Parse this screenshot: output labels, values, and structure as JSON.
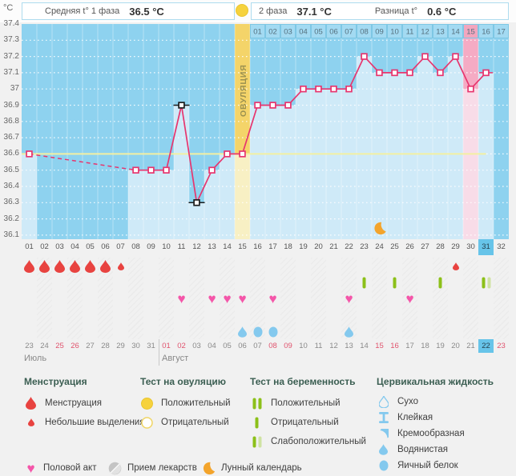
{
  "header": {
    "unit": "°C",
    "phase1_label": "Средняя t° 1 фаза",
    "phase1_value": "36.5 °C",
    "phase2_label": "2 фаза",
    "phase2_value": "37.1 °C",
    "diff_label": "Разница t°",
    "diff_value": "0.6 °C"
  },
  "chart_data": {
    "type": "line",
    "ylabel": "°C",
    "ylim": [
      36.1,
      37.4
    ],
    "ytick_step": 0.1,
    "ytick_labels": [
      "37.4",
      "37.3",
      "37.2",
      "37.1",
      "37",
      "36.9",
      "36.8",
      "36.7",
      "36.6",
      "36.5",
      "36.4",
      "36.3",
      "36.2",
      "36.1"
    ],
    "x_range_days": [
      1,
      32
    ],
    "points": [
      {
        "day": 1,
        "temp": 36.6
      },
      {
        "day": 8,
        "temp": 36.5
      },
      {
        "day": 9,
        "temp": 36.5
      },
      {
        "day": 10,
        "temp": 36.5
      },
      {
        "day": 11,
        "temp": 36.9,
        "disturbed": true
      },
      {
        "day": 12,
        "temp": 36.3,
        "disturbed": true
      },
      {
        "day": 13,
        "temp": 36.5
      },
      {
        "day": 14,
        "temp": 36.6
      },
      {
        "day": 15,
        "temp": 36.6
      },
      {
        "day": 16,
        "temp": 36.9
      },
      {
        "day": 17,
        "temp": 36.9
      },
      {
        "day": 18,
        "temp": 36.9
      },
      {
        "day": 19,
        "temp": 37.0
      },
      {
        "day": 20,
        "temp": 37.0
      },
      {
        "day": 21,
        "temp": 37.0
      },
      {
        "day": 22,
        "temp": 37.0
      },
      {
        "day": 23,
        "temp": 37.2
      },
      {
        "day": 24,
        "temp": 37.1
      },
      {
        "day": 25,
        "temp": 37.1
      },
      {
        "day": 26,
        "temp": 37.1
      },
      {
        "day": 27,
        "temp": 37.2
      },
      {
        "day": 28,
        "temp": 37.1
      },
      {
        "day": 29,
        "temp": 37.2
      },
      {
        "day": 30,
        "temp": 37.0
      },
      {
        "day": 31,
        "temp": 37.1,
        "end_marker": true
      }
    ],
    "coverline": 36.6,
    "ovulation_day": 15,
    "ovulation_label": "ОВУЛЯЦИЯ",
    "expected_period_day": 30,
    "today_day": 31,
    "moon_day": 24,
    "dpo_band": {
      "start_day": 16,
      "labels": [
        "01",
        "02",
        "03",
        "04",
        "05",
        "06",
        "07",
        "08",
        "09",
        "10",
        "11",
        "12",
        "13",
        "14",
        "15",
        "16",
        "17"
      ]
    }
  },
  "events": {
    "menstruation_days": [
      1,
      2,
      3,
      4,
      5,
      6
    ],
    "spotting_days": [
      7,
      29
    ],
    "pregnancy_tests": [
      {
        "day": 23,
        "result": "negative"
      },
      {
        "day": 25,
        "result": "negative"
      },
      {
        "day": 28,
        "result": "negative"
      },
      {
        "day": 31,
        "result": "weak_positive"
      }
    ],
    "intercourse_days": [
      11,
      13,
      14,
      15,
      17,
      22,
      26
    ],
    "cervical_fluid": [
      {
        "day": 15,
        "type": "watery"
      },
      {
        "day": 16,
        "type": "eggwhite"
      },
      {
        "day": 17,
        "type": "eggwhite"
      },
      {
        "day": 22,
        "type": "watery"
      }
    ]
  },
  "calendar": {
    "day_numbers": [
      "01",
      "02",
      "03",
      "04",
      "05",
      "06",
      "07",
      "08",
      "09",
      "10",
      "11",
      "12",
      "13",
      "14",
      "15",
      "16",
      "17",
      "18",
      "19",
      "20",
      "21",
      "22",
      "23",
      "24",
      "25",
      "26",
      "27",
      "28",
      "29",
      "30",
      "31",
      "32"
    ],
    "dates": [
      {
        "label": "23"
      },
      {
        "label": "24"
      },
      {
        "label": "25",
        "weekend": true
      },
      {
        "label": "26",
        "weekend": true
      },
      {
        "label": "27"
      },
      {
        "label": "28"
      },
      {
        "label": "29"
      },
      {
        "label": "30"
      },
      {
        "label": "31"
      },
      {
        "label": "01",
        "weekend": true
      },
      {
        "label": "02",
        "weekend": true
      },
      {
        "label": "03"
      },
      {
        "label": "04"
      },
      {
        "label": "05"
      },
      {
        "label": "06"
      },
      {
        "label": "07"
      },
      {
        "label": "08",
        "weekend": true
      },
      {
        "label": "09",
        "weekend": true
      },
      {
        "label": "10"
      },
      {
        "label": "11"
      },
      {
        "label": "12"
      },
      {
        "label": "13"
      },
      {
        "label": "14"
      },
      {
        "label": "15",
        "weekend": true
      },
      {
        "label": "16",
        "weekend": true
      },
      {
        "label": "17"
      },
      {
        "label": "18"
      },
      {
        "label": "19"
      },
      {
        "label": "20"
      },
      {
        "label": "21"
      },
      {
        "label": "22",
        "today": true
      },
      {
        "label": "23",
        "weekend": true
      }
    ],
    "months": [
      {
        "label": "Июль",
        "start_day": 1
      },
      {
        "label": "Август",
        "start_day": 10
      }
    ]
  },
  "legend": {
    "groups": [
      {
        "title": "Менструация",
        "items": [
          {
            "icon": "drop-big",
            "label": "Менструация"
          },
          {
            "icon": "drop-small",
            "label": "Небольшие выделения"
          }
        ]
      },
      {
        "title": "Тест на овуляцию",
        "items": [
          {
            "icon": "circle-filled",
            "label": "Положительный"
          },
          {
            "icon": "circle-outline",
            "label": "Отрицательный"
          }
        ]
      },
      {
        "title": "Тест на беременность",
        "items": [
          {
            "icon": "bars-positive",
            "label": "Положительный"
          },
          {
            "icon": "bar-negative",
            "label": "Отрицательный"
          },
          {
            "icon": "bars-weak",
            "label": "Слабоположительный"
          }
        ]
      },
      {
        "title": "Цервикальная жидкость",
        "items": [
          {
            "icon": "drop-outline",
            "label": "Сухо"
          },
          {
            "icon": "sticky",
            "label": "Клейкая"
          },
          {
            "icon": "creamy",
            "label": "Кремообразная"
          },
          {
            "icon": "watery",
            "label": "Водянистая"
          },
          {
            "icon": "eggwhite",
            "label": "Яичный белок"
          }
        ]
      }
    ],
    "extra": [
      {
        "icon": "heart",
        "label": "Половой акт"
      },
      {
        "icon": "pill",
        "label": "Прием лекарств"
      },
      {
        "icon": "moon",
        "label": "Лунный календарь"
      }
    ]
  },
  "colors": {
    "chart_bg": "#8ed2ef",
    "chart_light": "#cfeaf8",
    "band_bg": "#a3daf2",
    "band_border": "#7ec7e4",
    "band_period": "#f2a6be",
    "ovulation_col": "#f4d469",
    "ovulation_col_light": "#f8f0c4",
    "ovulation_text": "#9b9150",
    "period_col": "#f5abc4",
    "period_col_light": "#f8dce8",
    "curve": "#e7356e",
    "disturbed": "#1c1c1c",
    "coverline": "#f3f0a2",
    "today_blue": "#67c4e9",
    "menstruation_red": "#e84340",
    "weekend_red": "#e0546e",
    "heart": "#f456a9",
    "test_green": "#8cc019",
    "test_green_pale": "#cfe2a2",
    "ovulation_yellow": "#f6d23d",
    "cervical_blue": "#84c9ee",
    "moon_orange": "#f3a42c",
    "legend_header": "#3b5e52"
  }
}
